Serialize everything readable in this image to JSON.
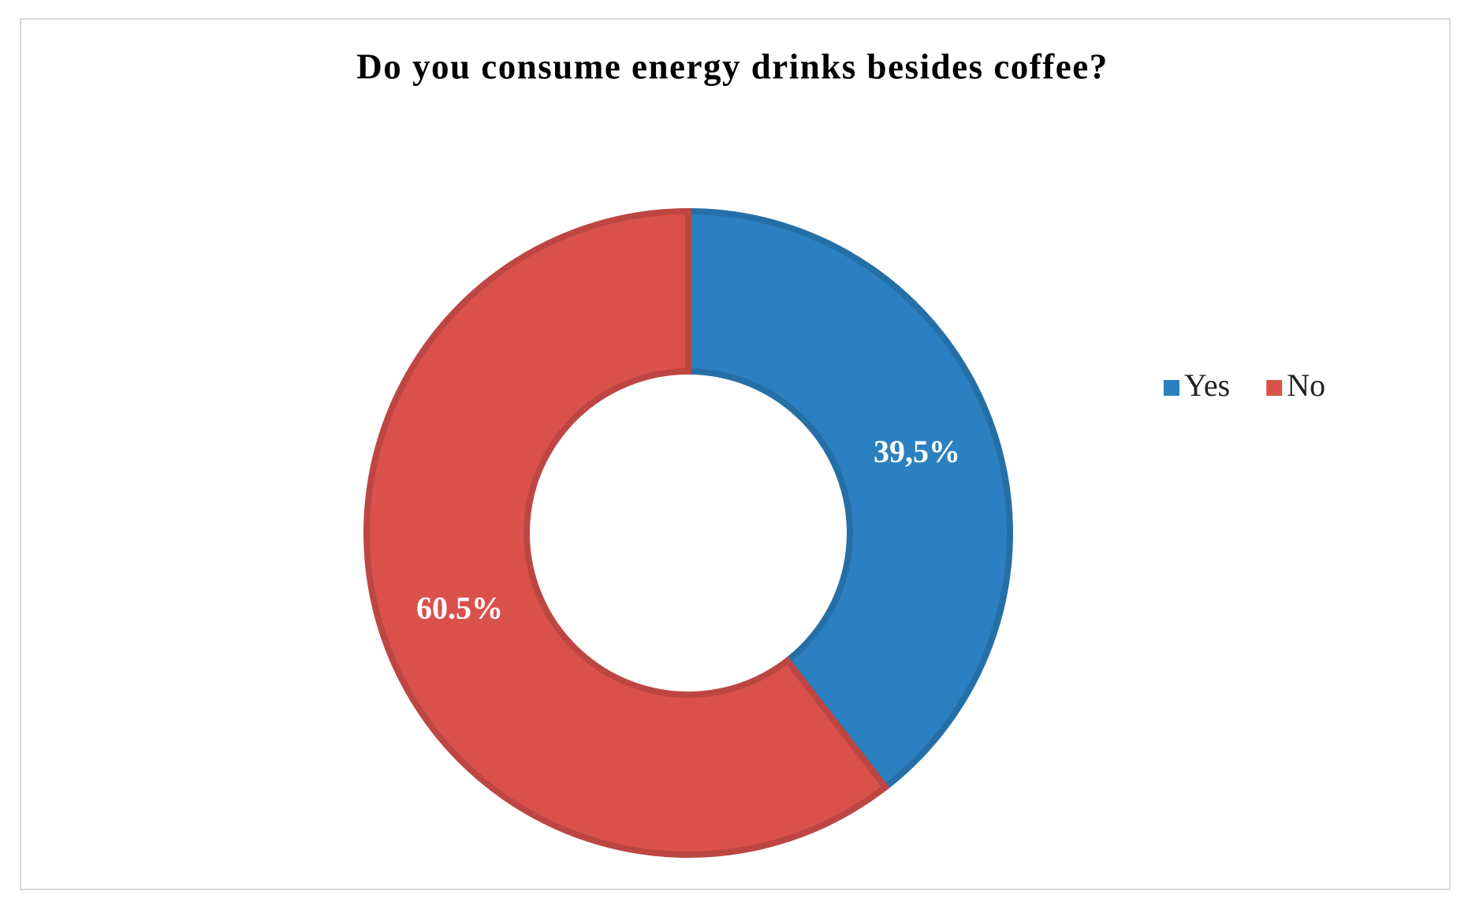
{
  "chart_data": {
    "type": "donut",
    "title": "Do you consume energy drinks besides coffee?",
    "categories": [
      "Yes",
      "No"
    ],
    "values": [
      39.5,
      60.5
    ],
    "value_labels": [
      "39,5%",
      "60.5%"
    ],
    "colors": [
      "#2a80c0",
      "#da514c"
    ],
    "legend_position": "right"
  }
}
